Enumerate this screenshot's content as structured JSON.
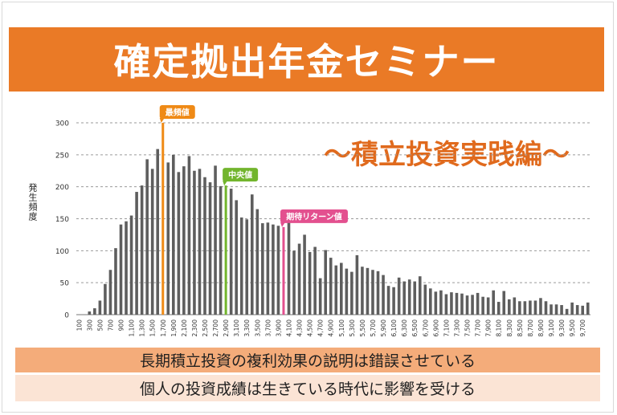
{
  "banner": {
    "title": "確定拠出年金セミナー"
  },
  "subtitle": "～積立投資実践編～",
  "statements": [
    "長期積立投資の複利効果の説明は錯誤させている",
    "個人の投資成績は生きている時代に影響を受ける"
  ],
  "colors": {
    "banner": "#ea7a26",
    "subtitle": "#e06a1d",
    "bars": "#5e5e5e",
    "mode": "#ef8a16",
    "median": "#72b52d",
    "mean": "#e3508f",
    "statement1_bg": "#f4ac7a",
    "statement2_bg": "#fbe4d5"
  },
  "chart_data": {
    "type": "bar",
    "ylabel": "発生頻度",
    "ylim": [
      0,
      300
    ],
    "yticks": [
      0,
      50,
      100,
      150,
      200,
      250,
      300
    ],
    "grid": true,
    "x_tick_labels": [
      "100",
      "300",
      "500",
      "700",
      "900",
      "1,100",
      "1,300",
      "1,500",
      "1,700",
      "1,900",
      "2,100",
      "2,300",
      "2,500",
      "2,700",
      "2,900",
      "3,100",
      "3,300",
      "3,500",
      "3,700",
      "3,900",
      "4,100",
      "4,300",
      "4,500",
      "4,700",
      "4,900",
      "5,100",
      "5,300",
      "5,500",
      "5,700",
      "5,900",
      "6,100",
      "6,300",
      "6,500",
      "6,700",
      "6,900",
      "7,100",
      "7,300",
      "7,500",
      "7,700",
      "7,900",
      "8,100",
      "8,300",
      "8,500",
      "8,700",
      "8,900",
      "9,100",
      "9,300",
      "9,500",
      "9,700"
    ],
    "x_start": 100,
    "x_step": 100,
    "values": [
      0,
      0,
      5,
      10,
      22,
      48,
      70,
      104,
      141,
      146,
      155,
      192,
      202,
      243,
      228,
      259,
      0,
      238,
      250,
      223,
      232,
      248,
      225,
      228,
      215,
      207,
      233,
      201,
      0,
      197,
      179,
      152,
      149,
      188,
      165,
      143,
      144,
      141,
      139,
      0,
      155,
      100,
      111,
      125,
      98,
      106,
      57,
      101,
      89,
      77,
      81,
      72,
      67,
      93,
      75,
      73,
      70,
      68,
      62,
      45,
      43,
      58,
      52,
      55,
      52,
      60,
      47,
      41,
      36,
      38,
      32,
      35,
      34,
      33,
      30,
      31,
      34,
      28,
      27,
      38,
      20,
      37,
      24,
      27,
      21,
      21,
      22,
      22,
      26,
      21,
      16,
      16,
      15,
      9,
      19,
      15,
      14,
      19
    ],
    "annotations": [
      {
        "label": "最頻値",
        "x": 1700,
        "value": 300,
        "color": "#ef8a16"
      },
      {
        "label": "中央値",
        "x": 2900,
        "value": 202,
        "color": "#72b52d"
      },
      {
        "label": "期待リターン値",
        "x": 4000,
        "value": 137,
        "color": "#e3508f"
      }
    ]
  }
}
